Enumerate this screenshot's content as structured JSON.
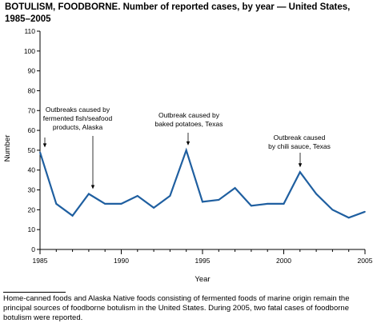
{
  "title": "BOTULISM, FOODBORNE. Number of reported cases, by year — United States, 1985–2005",
  "footnote": "Home-canned foods and Alaska Native foods consisting of fermented foods of marine origin remain the principal sources of foodborne botulism in the United States. During 2005, two fatal cases of foodborne botulism were reported.",
  "colors": {
    "series": "#1f5fa0",
    "axis": "#000000"
  },
  "chart_data": {
    "type": "line",
    "xlabel": "Year",
    "ylabel": "Number",
    "xlim": [
      1985,
      2005
    ],
    "ylim": [
      0,
      110
    ],
    "xticks": [
      "1985",
      "1990",
      "1995",
      "2000",
      "2005"
    ],
    "yticks": [
      "0",
      "10",
      "20",
      "30",
      "40",
      "50",
      "60",
      "70",
      "80",
      "90",
      "100",
      "110"
    ],
    "grid": false,
    "x": [
      1985,
      1986,
      1987,
      1988,
      1989,
      1990,
      1991,
      1992,
      1993,
      1994,
      1995,
      1996,
      1997,
      1998,
      1999,
      2000,
      2001,
      2002,
      2003,
      2004,
      2005
    ],
    "series": [
      {
        "values": [
          49,
          23,
          17,
          28,
          23,
          23,
          27,
          21,
          27,
          50,
          24,
          25,
          31,
          22,
          23,
          23,
          39,
          28,
          20,
          16,
          19
        ]
      }
    ],
    "annotations": [
      {
        "lines": [
          "Outbreaks caused by",
          "fermented fish/seafood",
          "products, Alaska"
        ],
        "arrows_to": [
          1985,
          1988
        ]
      },
      {
        "lines": [
          "Outbreak caused by",
          "baked potatoes, Texas"
        ],
        "arrows_to": [
          1994
        ]
      },
      {
        "lines": [
          "Outbreak caused",
          "by chili sauce, Texas"
        ],
        "arrows_to": [
          2001
        ]
      }
    ]
  }
}
